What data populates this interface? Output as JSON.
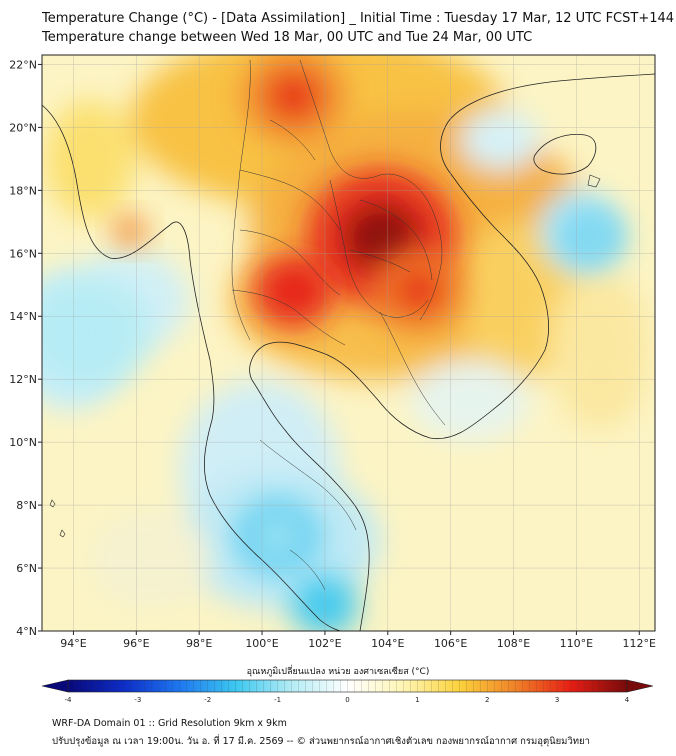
{
  "header": {
    "title_line1": "Temperature Change (°C) - [Data Assimilation] _ Initial Time : Tuesday 17 Mar, 12 UTC FCST+144",
    "title_line2": "Temperature change between Wed 18 Mar, 00 UTC and Tue 24 Mar, 00 UTC"
  },
  "map": {
    "lat_labels": [
      "22°N",
      "20°N",
      "18°N",
      "16°N",
      "14°N",
      "12°N",
      "10°N",
      "8°N",
      "6°N",
      "4°N"
    ],
    "lon_labels": [
      "94°E",
      "96°E",
      "98°E",
      "100°E",
      "102°E",
      "104°E",
      "106°E",
      "108°E",
      "110°E",
      "112°E"
    ],
    "lat_range": [
      4,
      22.3
    ],
    "lon_range": [
      93,
      112.5
    ],
    "hotspots": [
      {
        "lon": 103.8,
        "lat": 16.5,
        "r": 2.2,
        "value": 3.3
      },
      {
        "lon": 101.0,
        "lat": 14.8,
        "r": 1.2,
        "value": 3.1
      },
      {
        "lon": 101.0,
        "lat": 21.0,
        "r": 1.5,
        "value": 2.6
      },
      {
        "lon": 105.0,
        "lat": 14.8,
        "r": 1.4,
        "value": 2.4
      },
      {
        "lon": 95.8,
        "lat": 16.7,
        "r": 0.5,
        "value": 2.2
      },
      {
        "lon": 102.0,
        "lat": 4.8,
        "r": 1.0,
        "value": -2.0
      },
      {
        "lon": 100.5,
        "lat": 7.0,
        "r": 1.2,
        "value": -1.5
      },
      {
        "lon": 94.5,
        "lat": 13.5,
        "r": 1.8,
        "value": -1.2
      },
      {
        "lon": 110.5,
        "lat": 16.5,
        "r": 0.9,
        "value": -1.4
      }
    ]
  },
  "colorbar": {
    "title": "อุณหภูมิเปลี่ยนแปลง หน่วย องศาเซลเซียส (°C)",
    "min": -4,
    "max": 4,
    "ticks": [
      "-4",
      "-3",
      "-2",
      "-1",
      "0",
      "1",
      "2",
      "3",
      "4"
    ],
    "colors": [
      "#08087a",
      "#0d2dc8",
      "#1e78f0",
      "#3cc8f0",
      "#b4ecf5",
      "#ffffff",
      "#fff5b4",
      "#fcd23c",
      "#f08228",
      "#e61e14",
      "#780a0a"
    ]
  },
  "footer": {
    "line1": "WRF-DA Domain 01 :: Grid Resolution 9km x 9km",
    "line2": "ปรับปรุงข้อมูล ณ เวลา 19:00น. วัน อ. ที่ 17 มี.ค. 2569 -- © ส่วนพยากรณ์อากาศเชิงตัวเลข กองพยากรณ์อากาศ กรมอุตุนิยมวิทยา"
  }
}
